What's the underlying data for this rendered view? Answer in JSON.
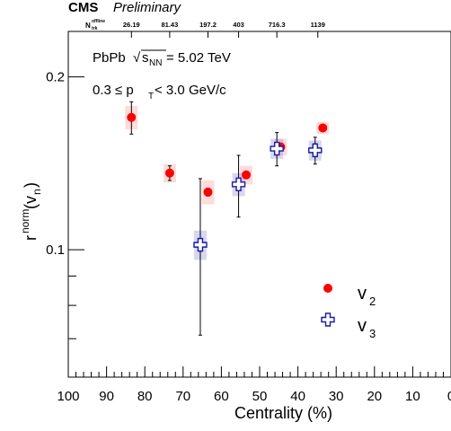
{
  "header": {
    "experiment": "CMS",
    "status": "Preliminary"
  },
  "chart_data": {
    "type": "scatter",
    "xlabel": "Centrality (%)",
    "ylabel_base": "r",
    "ylabel_sup": "norm",
    "ylabel_paren_open": "(v",
    "ylabel_sub": "n",
    "ylabel_paren_close": ")",
    "xlim": [
      100,
      0
    ],
    "ylog": true,
    "ylim": [
      0.06,
      0.24
    ],
    "x_ticks": [
      100,
      90,
      80,
      70,
      60,
      50,
      40,
      30,
      20,
      10,
      0
    ],
    "x_tick_labels": [
      "100",
      "90",
      "80",
      "70",
      "60",
      "50",
      "40",
      "30",
      "20",
      "10",
      "0"
    ],
    "y_ticks": [
      0.1,
      0.2
    ],
    "y_tick_labels": [
      "0.1",
      "0.2"
    ],
    "top_axis": {
      "label_base": "N",
      "label_sup": "offline",
      "label_sub": "trk",
      "x": [
        83.5,
        73.5,
        63.5,
        55.5,
        45.5,
        34.8
      ],
      "labels": [
        "26.19",
        "81.43",
        "197.2",
        "403",
        "716.3",
        "1139"
      ]
    },
    "annotations": {
      "system": "PbPb",
      "sqrt_symbol": "√",
      "energy_var": "s",
      "energy_sub": "NN",
      "energy_value": " = 5.02 TeV",
      "pt_low": "0.3 ≤ p",
      "pt_sub": "T",
      "pt_high": " < 3.0 GeV/c"
    },
    "legend": {
      "position": "bottom-right"
    },
    "series": [
      {
        "name_base": "v",
        "name_sub": "2",
        "marker": "circle",
        "color": "#ff0000",
        "x": [
          83.5,
          73.5,
          63.5,
          53.5,
          44.5,
          33.5
        ],
        "y": [
          0.17,
          0.136,
          0.126,
          0.135,
          0.151,
          0.163
        ],
        "err": [
          0.011,
          0.004,
          0.002,
          0.002,
          0.002,
          0.002
        ],
        "sys": [
          0.008,
          0.005,
          0.006,
          0.005,
          0.005,
          0.004
        ]
      },
      {
        "name_base": "v",
        "name_sub": "3",
        "marker": "cross",
        "color": "#1a1a9a",
        "x": [
          65.5,
          55.5,
          45.5,
          35.5
        ],
        "y": [
          0.102,
          0.13,
          0.15,
          0.149
        ],
        "err": [
          0.031,
          0.016,
          0.01,
          0.008
        ],
        "sys": [
          0.006,
          0.006,
          0.006,
          0.006
        ]
      }
    ]
  }
}
